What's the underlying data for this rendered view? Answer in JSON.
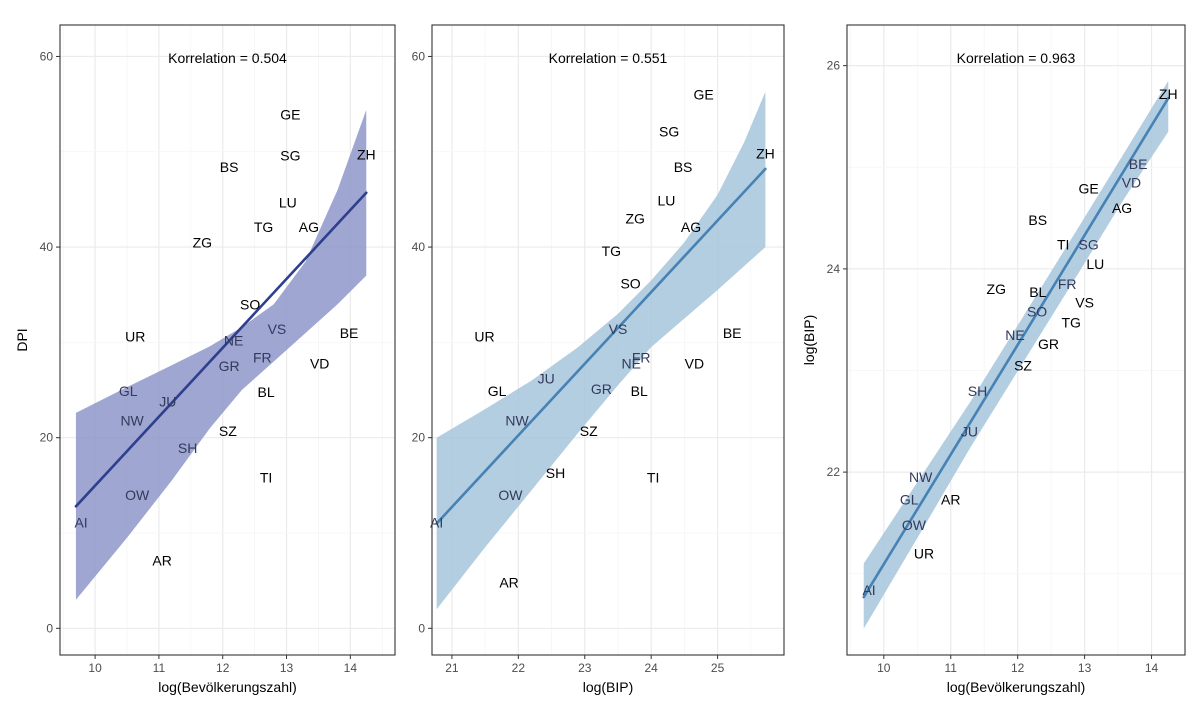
{
  "chart_data": [
    {
      "type": "scatter",
      "annotation": "Korrelation = 0.504",
      "xlabel": "log(Bevölkerungszahl)",
      "ylabel": "DPI",
      "xlim": [
        9.45,
        14.7
      ],
      "ylim": [
        -2.8,
        63.3
      ],
      "xticks": [
        10,
        11,
        12,
        13,
        14
      ],
      "yticks": [
        0,
        20,
        40,
        60
      ],
      "fit": {
        "x": [
          9.7,
          14.25
        ],
        "y": [
          12.8,
          45.7
        ]
      },
      "band_upper": {
        "x": [
          9.7,
          10.5,
          11.2,
          11.8,
          12.3,
          12.8,
          13.3,
          13.8,
          14.25
        ],
        "y": [
          22.6,
          25.3,
          27.6,
          29.6,
          31.6,
          34.0,
          38.5,
          46.0,
          54.4
        ]
      },
      "band_lower": {
        "x": [
          9.7,
          10.5,
          11.2,
          11.8,
          12.3,
          12.8,
          13.3,
          13.8,
          14.25
        ],
        "y": [
          3.0,
          9.5,
          15.5,
          21.0,
          25.0,
          28.0,
          31.0,
          34.0,
          37.0
        ]
      },
      "colors": {
        "line": "#2e3f8e",
        "band": "#8e97c9"
      },
      "points": [
        {
          "label": "GE",
          "x": 13.06,
          "y": 53.9
        },
        {
          "label": "BS",
          "x": 12.1,
          "y": 48.4
        },
        {
          "label": "SG",
          "x": 13.06,
          "y": 49.6
        },
        {
          "label": "ZH",
          "x": 14.25,
          "y": 49.7
        },
        {
          "label": "LU",
          "x": 13.02,
          "y": 44.7
        },
        {
          "label": "TG",
          "x": 12.64,
          "y": 42.1
        },
        {
          "label": "AG",
          "x": 13.35,
          "y": 42.1
        },
        {
          "label": "ZG",
          "x": 11.68,
          "y": 40.5
        },
        {
          "label": "SO",
          "x": 12.43,
          "y": 34.0
        },
        {
          "label": "UR",
          "x": 10.63,
          "y": 30.6
        },
        {
          "label": "VS",
          "x": 12.85,
          "y": 31.4
        },
        {
          "label": "BE",
          "x": 13.98,
          "y": 31.0
        },
        {
          "label": "NE",
          "x": 12.17,
          "y": 30.2
        },
        {
          "label": "FR",
          "x": 12.62,
          "y": 28.4
        },
        {
          "label": "VD",
          "x": 13.52,
          "y": 27.8
        },
        {
          "label": "GR",
          "x": 12.1,
          "y": 27.5
        },
        {
          "label": "GL",
          "x": 10.52,
          "y": 24.9
        },
        {
          "label": "BL",
          "x": 12.68,
          "y": 24.8
        },
        {
          "label": "JU",
          "x": 11.14,
          "y": 23.8
        },
        {
          "label": "NW",
          "x": 10.58,
          "y": 21.8
        },
        {
          "label": "SZ",
          "x": 12.08,
          "y": 20.7
        },
        {
          "label": "SH",
          "x": 11.45,
          "y": 18.9
        },
        {
          "label": "TI",
          "x": 12.68,
          "y": 15.8
        },
        {
          "label": "OW",
          "x": 10.66,
          "y": 14.0
        },
        {
          "label": "AI",
          "x": 9.78,
          "y": 11.1
        },
        {
          "label": "AR",
          "x": 11.05,
          "y": 7.1
        }
      ]
    },
    {
      "type": "scatter",
      "annotation": "Korrelation = 0.551",
      "xlabel": "log(BIP)",
      "ylabel": "",
      "xlim": [
        20.7,
        26.0
      ],
      "ylim": [
        -2.8,
        63.3
      ],
      "xticks": [
        21,
        22,
        23,
        24,
        25
      ],
      "yticks": [
        0,
        20,
        40,
        60
      ],
      "fit": {
        "x": [
          20.77,
          25.72
        ],
        "y": [
          11.0,
          48.2
        ]
      },
      "band_upper": {
        "x": [
          20.77,
          21.5,
          22.2,
          22.9,
          23.5,
          24.0,
          24.5,
          25.0,
          25.4,
          25.72
        ],
        "y": [
          20.0,
          23.0,
          26.0,
          29.5,
          33.0,
          36.5,
          40.5,
          45.5,
          51.0,
          56.3
        ]
      },
      "band_lower": {
        "x": [
          20.77,
          21.5,
          22.2,
          22.9,
          23.5,
          24.0,
          24.5,
          25.0,
          25.4,
          25.72
        ],
        "y": [
          2.0,
          8.5,
          14.5,
          20.5,
          25.5,
          29.5,
          32.5,
          35.5,
          38.0,
          40.0
        ]
      },
      "colors": {
        "line": "#4682b4",
        "band": "#a6c4dc"
      },
      "points": [
        {
          "label": "GE",
          "x": 24.79,
          "y": 56.0
        },
        {
          "label": "SG",
          "x": 24.27,
          "y": 52.1
        },
        {
          "label": "BS",
          "x": 24.48,
          "y": 48.4
        },
        {
          "label": "ZH",
          "x": 25.72,
          "y": 49.8
        },
        {
          "label": "LU",
          "x": 24.23,
          "y": 44.9
        },
        {
          "label": "ZG",
          "x": 23.76,
          "y": 43.0
        },
        {
          "label": "AG",
          "x": 24.6,
          "y": 42.1
        },
        {
          "label": "TG",
          "x": 23.4,
          "y": 39.6
        },
        {
          "label": "SO",
          "x": 23.69,
          "y": 36.2
        },
        {
          "label": "UR",
          "x": 21.49,
          "y": 30.6
        },
        {
          "label": "VS",
          "x": 23.5,
          "y": 31.4
        },
        {
          "label": "BE",
          "x": 25.22,
          "y": 31.0
        },
        {
          "label": "NE",
          "x": 23.7,
          "y": 27.8
        },
        {
          "label": "FR",
          "x": 23.85,
          "y": 28.4
        },
        {
          "label": "VD",
          "x": 24.65,
          "y": 27.8
        },
        {
          "label": "JU",
          "x": 22.42,
          "y": 26.2
        },
        {
          "label": "GR",
          "x": 23.25,
          "y": 25.1
        },
        {
          "label": "GL",
          "x": 21.68,
          "y": 24.9
        },
        {
          "label": "BL",
          "x": 23.82,
          "y": 24.9
        },
        {
          "label": "NW",
          "x": 21.98,
          "y": 21.8
        },
        {
          "label": "SZ",
          "x": 23.06,
          "y": 20.7
        },
        {
          "label": "SH",
          "x": 22.56,
          "y": 16.3
        },
        {
          "label": "TI",
          "x": 24.03,
          "y": 15.8
        },
        {
          "label": "OW",
          "x": 21.88,
          "y": 14.0
        },
        {
          "label": "AI",
          "x": 20.77,
          "y": 11.1
        },
        {
          "label": "AR",
          "x": 21.86,
          "y": 4.8
        }
      ]
    },
    {
      "type": "scatter",
      "annotation": "Korrelation = 0.963",
      "xlabel": "log(Bevölkerungszahl)",
      "ylabel": "log(BIP)",
      "xlim": [
        9.45,
        14.5
      ],
      "ylim": [
        20.2,
        26.4
      ],
      "xticks": [
        10,
        11,
        12,
        13,
        14
      ],
      "yticks": [
        22,
        24,
        26
      ],
      "fit": {
        "x": [
          9.7,
          14.25
        ],
        "y": [
          20.77,
          25.68
        ]
      },
      "band_upper": {
        "x": [
          9.7,
          10.5,
          11.3,
          12.1,
          12.9,
          13.6,
          14.25
        ],
        "y": [
          21.1,
          21.9,
          22.7,
          23.55,
          24.4,
          25.15,
          25.85
        ]
      },
      "band_lower": {
        "x": [
          9.7,
          10.5,
          11.3,
          12.1,
          12.9,
          13.6,
          14.25
        ],
        "y": [
          20.46,
          21.35,
          22.25,
          23.1,
          23.95,
          24.7,
          25.35
        ]
      },
      "colors": {
        "line": "#4682b4",
        "band": "#a6c4dc"
      },
      "points": [
        {
          "label": "ZH",
          "x": 14.25,
          "y": 25.72
        },
        {
          "label": "BE",
          "x": 13.8,
          "y": 25.03
        },
        {
          "label": "GE",
          "x": 13.06,
          "y": 24.79
        },
        {
          "label": "VD",
          "x": 13.7,
          "y": 24.85
        },
        {
          "label": "AG",
          "x": 13.56,
          "y": 24.6
        },
        {
          "label": "BS",
          "x": 12.3,
          "y": 24.48
        },
        {
          "label": "TI",
          "x": 12.68,
          "y": 24.24
        },
        {
          "label": "SG",
          "x": 13.06,
          "y": 24.24
        },
        {
          "label": "LU",
          "x": 13.16,
          "y": 24.05
        },
        {
          "label": "ZG",
          "x": 11.68,
          "y": 23.8
        },
        {
          "label": "BL",
          "x": 12.3,
          "y": 23.77
        },
        {
          "label": "FR",
          "x": 12.74,
          "y": 23.85
        },
        {
          "label": "VS",
          "x": 13.0,
          "y": 23.67
        },
        {
          "label": "SO",
          "x": 12.29,
          "y": 23.58
        },
        {
          "label": "TG",
          "x": 12.8,
          "y": 23.47
        },
        {
          "label": "NE",
          "x": 11.96,
          "y": 23.35
        },
        {
          "label": "GR",
          "x": 12.46,
          "y": 23.26
        },
        {
          "label": "SZ",
          "x": 12.08,
          "y": 23.05
        },
        {
          "label": "SH",
          "x": 11.4,
          "y": 22.8
        },
        {
          "label": "JU",
          "x": 11.28,
          "y": 22.4
        },
        {
          "label": "NW",
          "x": 10.55,
          "y": 21.95
        },
        {
          "label": "AR",
          "x": 11.0,
          "y": 21.73
        },
        {
          "label": "GL",
          "x": 10.38,
          "y": 21.73
        },
        {
          "label": "OW",
          "x": 10.45,
          "y": 21.48
        },
        {
          "label": "UR",
          "x": 10.6,
          "y": 21.2
        },
        {
          "label": "AI",
          "x": 9.78,
          "y": 20.84
        }
      ]
    }
  ]
}
